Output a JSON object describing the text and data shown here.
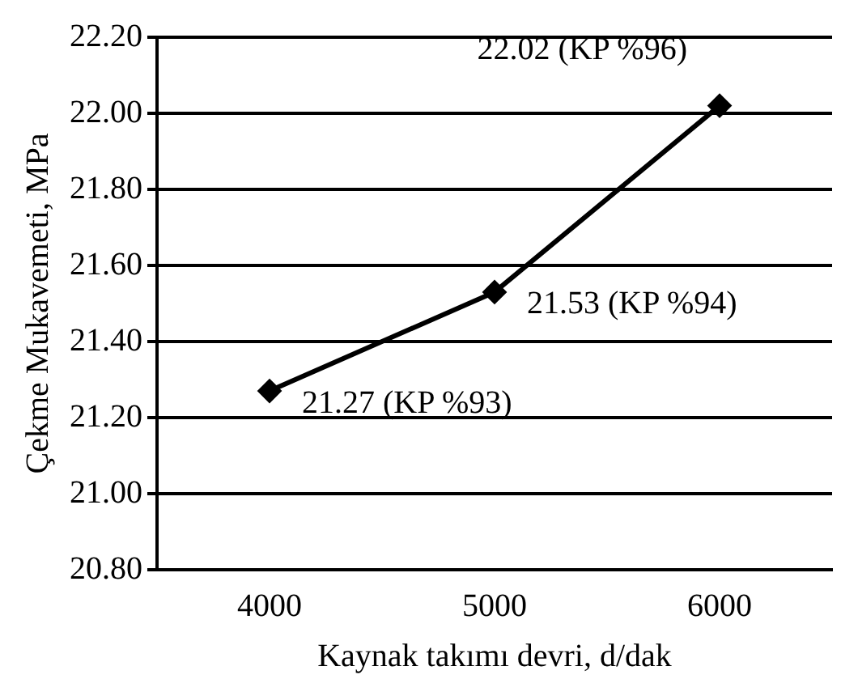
{
  "chart_data": {
    "type": "line",
    "xlabel": "Kaynak takımı devri, d/dak",
    "ylabel": "Çekme Mukavemeti, MPa",
    "categories": [
      "4000",
      "5000",
      "6000"
    ],
    "series": [
      {
        "color": "#000000",
        "values": [
          21.27,
          21.53,
          22.02
        ]
      }
    ],
    "ylim": [
      20.8,
      22.2
    ],
    "yticks": [
      {
        "value": 20.8,
        "label": "20.80"
      },
      {
        "value": 21.0,
        "label": "21.00"
      },
      {
        "value": 21.2,
        "label": "21.20"
      },
      {
        "value": 21.4,
        "label": "21.40"
      },
      {
        "value": 21.6,
        "label": "21.60"
      },
      {
        "value": 21.8,
        "label": "21.80"
      },
      {
        "value": 22.0,
        "label": "22.00"
      },
      {
        "value": 22.2,
        "label": "22.20"
      }
    ],
    "grid": "y",
    "legend": false,
    "marker": "diamond",
    "line_style": "solid",
    "annotations": [
      {
        "text": "21.27 (KP %93)",
        "x": "4000",
        "y": 21.27
      },
      {
        "text": "21.53 (KP %94)",
        "x": "5000",
        "y": 21.53
      },
      {
        "text": "22.02 (KP %96)",
        "x": "6000",
        "y": 22.02
      }
    ]
  }
}
